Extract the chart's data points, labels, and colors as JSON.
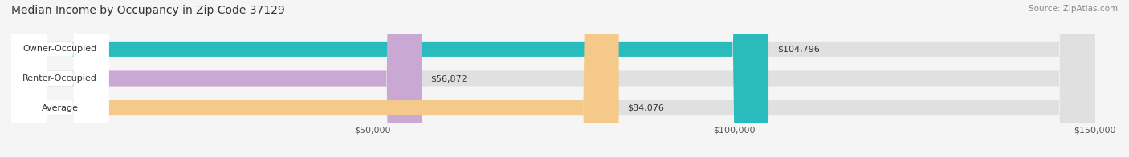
{
  "title": "Median Income by Occupancy in Zip Code 37129",
  "source": "Source: ZipAtlas.com",
  "categories": [
    "Owner-Occupied",
    "Renter-Occupied",
    "Average"
  ],
  "values": [
    104796,
    56872,
    84076
  ],
  "bar_colors": [
    "#2abcbc",
    "#c9a8d4",
    "#f5c98a"
  ],
  "value_labels": [
    "$104,796",
    "$56,872",
    "$84,076"
  ],
  "xlim": [
    0,
    150000
  ],
  "xticks": [
    0,
    50000,
    100000,
    150000
  ],
  "xticklabels": [
    "",
    "$50,000",
    "$100,000",
    "$150,000"
  ],
  "background_color": "#f5f5f5",
  "bar_background_color": "#e0e0e0",
  "bar_height": 0.52,
  "figsize": [
    14.06,
    1.96
  ],
  "dpi": 100
}
